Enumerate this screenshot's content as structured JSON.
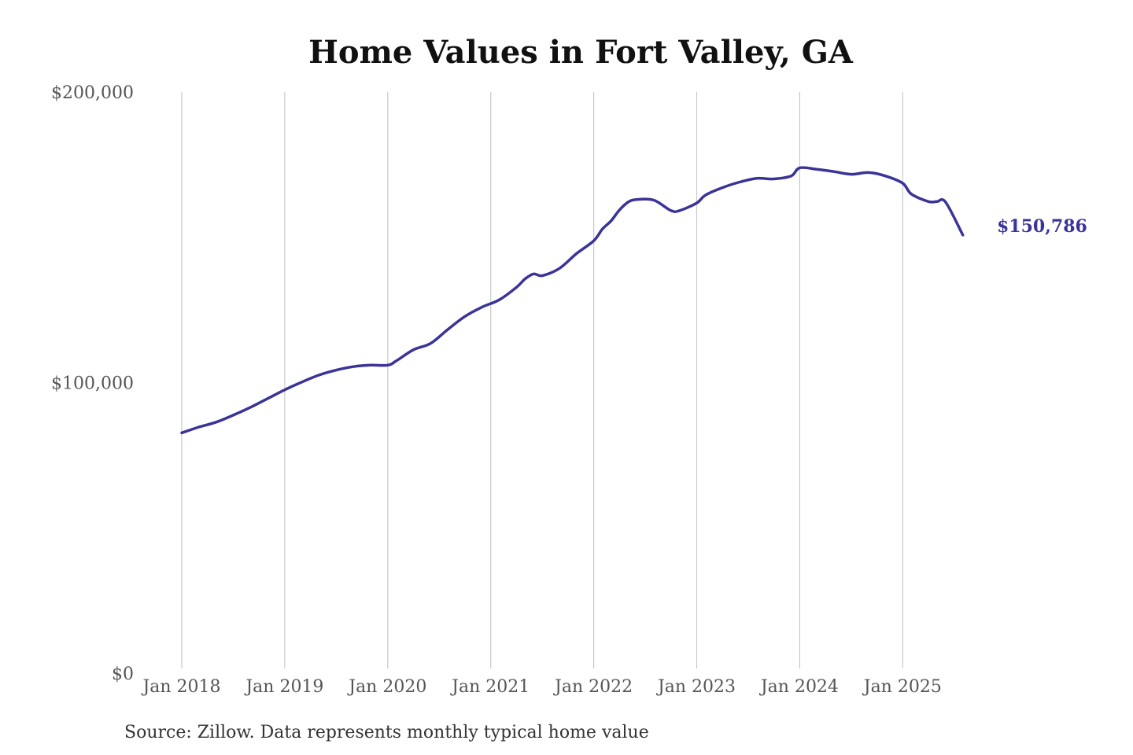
{
  "colors": {
    "series": "#3a3398",
    "grid": "#c8c8c8",
    "title": "#111111",
    "tick_text": "#555555",
    "source_text": "#333333"
  },
  "chart_data": {
    "type": "line",
    "title": "Home Values in Fort Valley, GA",
    "xlabel": "",
    "ylabel": "",
    "ylim": [
      0,
      200000
    ],
    "y_ticks": [
      {
        "value": 0,
        "label": "$0"
      },
      {
        "value": 100000,
        "label": "$100,000"
      },
      {
        "value": 200000,
        "label": "$200,000"
      }
    ],
    "x_ticks": [
      {
        "value": "2018-01",
        "label": "Jan 2018"
      },
      {
        "value": "2019-01",
        "label": "Jan 2019"
      },
      {
        "value": "2020-01",
        "label": "Jan 2020"
      },
      {
        "value": "2021-01",
        "label": "Jan 2021"
      },
      {
        "value": "2022-01",
        "label": "Jan 2022"
      },
      {
        "value": "2023-01",
        "label": "Jan 2023"
      },
      {
        "value": "2024-01",
        "label": "Jan 2024"
      },
      {
        "value": "2025-01",
        "label": "Jan 2025"
      }
    ],
    "grid": {
      "vertical": true,
      "horizontal": false
    },
    "legend": "none",
    "end_label": "$150,786",
    "series": [
      {
        "color": "#3a3398",
        "x": [
          "2018-01",
          "2018-03",
          "2018-05",
          "2018-07",
          "2018-09",
          "2018-11",
          "2019-01",
          "2019-03",
          "2019-05",
          "2019-07",
          "2019-09",
          "2019-11",
          "2020-01",
          "2020-02",
          "2020-04",
          "2020-06",
          "2020-08",
          "2020-10",
          "2020-12",
          "2021-02",
          "2021-04",
          "2021-05",
          "2021-06",
          "2021-07",
          "2021-09",
          "2021-11",
          "2022-01",
          "2022-02",
          "2022-03",
          "2022-04",
          "2022-05",
          "2022-06",
          "2022-08",
          "2022-10",
          "2022-11",
          "2023-01",
          "2023-02",
          "2023-04",
          "2023-06",
          "2023-08",
          "2023-10",
          "2023-12",
          "2024-01",
          "2024-03",
          "2024-05",
          "2024-07",
          "2024-09",
          "2024-11",
          "2025-01",
          "2025-02",
          "2025-04",
          "2025-05",
          "2025-06",
          "2025-08"
        ],
        "values": [
          82700,
          84700,
          86400,
          88800,
          91500,
          94500,
          97500,
          100200,
          102600,
          104300,
          105500,
          106000,
          106000,
          107500,
          111300,
          113500,
          118300,
          122800,
          126000,
          128500,
          132800,
          135700,
          137400,
          136800,
          139300,
          144400,
          148800,
          152800,
          155600,
          159400,
          162100,
          163000,
          162800,
          159200,
          159200,
          161800,
          164500,
          167100,
          169000,
          170300,
          170100,
          171100,
          173900,
          173400,
          172600,
          171700,
          172300,
          171100,
          168600,
          164900,
          162300,
          162300,
          162100,
          150786
        ]
      }
    ]
  },
  "footer": {
    "source": "Source: Zillow. Data represents monthly typical home value"
  }
}
